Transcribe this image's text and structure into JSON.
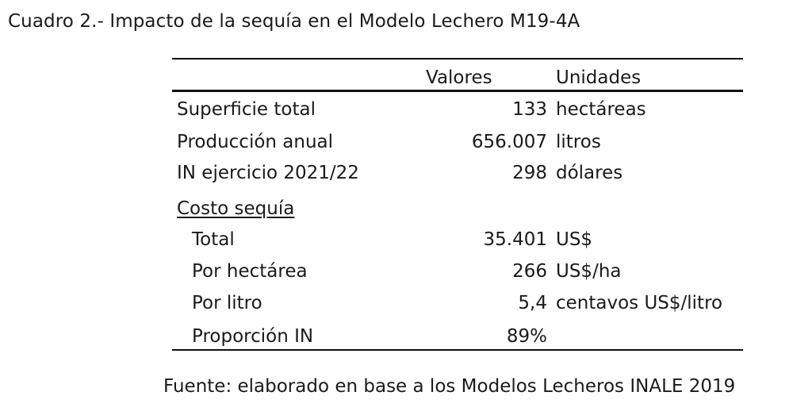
{
  "title": "Cuadro 2.- Impacto de la sequía en el Modelo Lechero M19-4A",
  "table": {
    "headers": {
      "values": "Valores",
      "units": "Unidades"
    },
    "rows": [
      {
        "label": "Superficie total",
        "value": "133",
        "unit": "hectáreas"
      },
      {
        "label": "Producción anual",
        "value": "656.007",
        "unit": "litros"
      },
      {
        "label": "IN ejercicio 2021/22",
        "value": "298",
        "unit": "dólares"
      },
      {
        "label": "Costo sequía",
        "value": "",
        "unit": ""
      },
      {
        "label": "Total",
        "value": "35.401",
        "unit": "US$"
      },
      {
        "label": "Por hectárea",
        "value": "266",
        "unit": "US$/ha"
      },
      {
        "label": "Por litro",
        "value": "5,4",
        "unit": "centavos US$/litro"
      },
      {
        "label": "Proporción IN",
        "value": "89%",
        "unit": ""
      }
    ]
  },
  "source": "Fuente: elaborado en base a los Modelos Lecheros INALE 2019"
}
